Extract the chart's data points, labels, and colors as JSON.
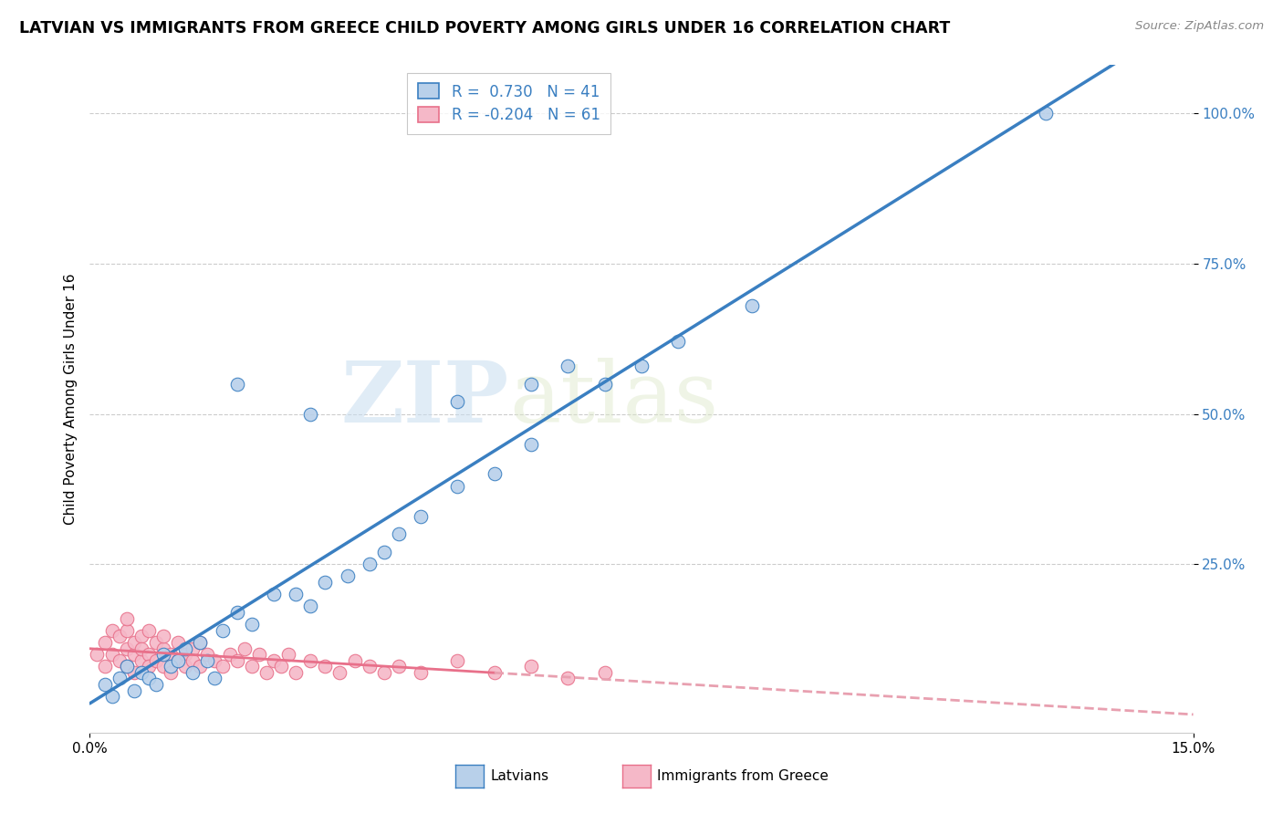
{
  "title": "LATVIAN VS IMMIGRANTS FROM GREECE CHILD POVERTY AMONG GIRLS UNDER 16 CORRELATION CHART",
  "source": "Source: ZipAtlas.com",
  "ylabel": "Child Poverty Among Girls Under 16",
  "y_ticks_labels": [
    "25.0%",
    "50.0%",
    "75.0%",
    "100.0%"
  ],
  "y_tick_vals": [
    0.25,
    0.5,
    0.75,
    1.0
  ],
  "xlim": [
    0,
    0.15
  ],
  "ylim": [
    -0.03,
    1.08
  ],
  "latvian_R": 0.73,
  "latvian_N": 41,
  "greece_R": -0.204,
  "greece_N": 61,
  "legend_latvians": "Latvians",
  "legend_greece": "Immigrants from Greece",
  "latvian_color": "#b8d0ea",
  "greece_color": "#f5b8c8",
  "latvian_line_color": "#3a7fc1",
  "greece_line_color": "#e8708a",
  "greece_line_dash_color": "#e8a0b0",
  "watermark_zip": "ZIP",
  "watermark_atlas": "atlas",
  "latvian_x": [
    0.002,
    0.003,
    0.004,
    0.005,
    0.006,
    0.007,
    0.008,
    0.009,
    0.01,
    0.011,
    0.012,
    0.013,
    0.014,
    0.015,
    0.016,
    0.017,
    0.018,
    0.02,
    0.022,
    0.025,
    0.028,
    0.03,
    0.032,
    0.035,
    0.038,
    0.04,
    0.042,
    0.045,
    0.05,
    0.055,
    0.06,
    0.02,
    0.03,
    0.05,
    0.06,
    0.065,
    0.07,
    0.075,
    0.08,
    0.09,
    0.13
  ],
  "latvian_y": [
    0.05,
    0.03,
    0.06,
    0.08,
    0.04,
    0.07,
    0.06,
    0.05,
    0.1,
    0.08,
    0.09,
    0.11,
    0.07,
    0.12,
    0.09,
    0.06,
    0.14,
    0.17,
    0.15,
    0.2,
    0.2,
    0.18,
    0.22,
    0.23,
    0.25,
    0.27,
    0.3,
    0.33,
    0.38,
    0.4,
    0.45,
    0.55,
    0.5,
    0.52,
    0.55,
    0.58,
    0.55,
    0.58,
    0.62,
    0.68,
    1.0
  ],
  "greece_x": [
    0.001,
    0.002,
    0.002,
    0.003,
    0.003,
    0.004,
    0.004,
    0.005,
    0.005,
    0.005,
    0.005,
    0.006,
    0.006,
    0.006,
    0.007,
    0.007,
    0.007,
    0.008,
    0.008,
    0.008,
    0.009,
    0.009,
    0.01,
    0.01,
    0.01,
    0.011,
    0.011,
    0.012,
    0.012,
    0.013,
    0.013,
    0.014,
    0.014,
    0.015,
    0.015,
    0.016,
    0.017,
    0.018,
    0.019,
    0.02,
    0.021,
    0.022,
    0.023,
    0.024,
    0.025,
    0.026,
    0.027,
    0.028,
    0.03,
    0.032,
    0.034,
    0.036,
    0.038,
    0.04,
    0.042,
    0.045,
    0.05,
    0.055,
    0.06,
    0.065,
    0.07
  ],
  "greece_y": [
    0.1,
    0.12,
    0.08,
    0.1,
    0.14,
    0.09,
    0.13,
    0.11,
    0.08,
    0.14,
    0.16,
    0.1,
    0.12,
    0.07,
    0.09,
    0.13,
    0.11,
    0.1,
    0.14,
    0.08,
    0.09,
    0.12,
    0.11,
    0.08,
    0.13,
    0.1,
    0.07,
    0.09,
    0.12,
    0.1,
    0.08,
    0.11,
    0.09,
    0.08,
    0.12,
    0.1,
    0.09,
    0.08,
    0.1,
    0.09,
    0.11,
    0.08,
    0.1,
    0.07,
    0.09,
    0.08,
    0.1,
    0.07,
    0.09,
    0.08,
    0.07,
    0.09,
    0.08,
    0.07,
    0.08,
    0.07,
    0.09,
    0.07,
    0.08,
    0.06,
    0.07
  ]
}
